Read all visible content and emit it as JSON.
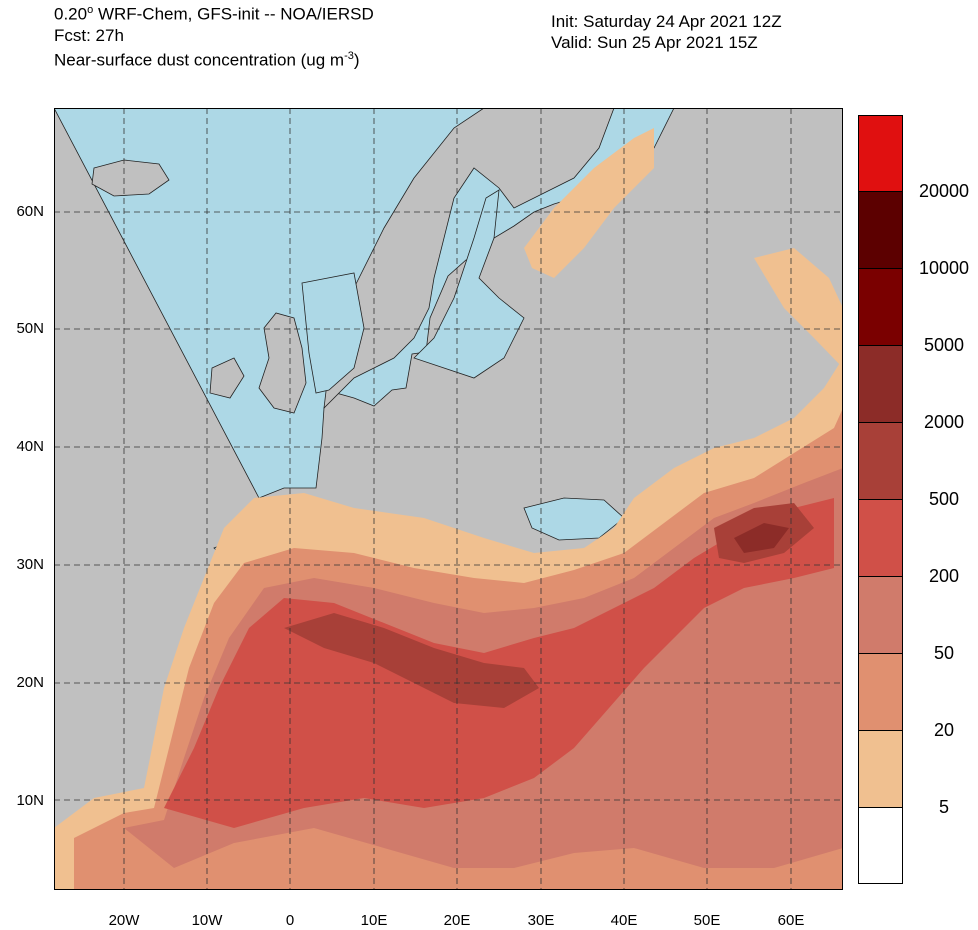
{
  "header": {
    "line1_prefix": "0.20",
    "line1_degree": "o",
    "line1_suffix": " WRF-Chem, GFS-init -- NOA/IERSD",
    "line2": "Fcst: 27h",
    "line3_prefix": "Near-surface dust concentration (ug m",
    "line3_exp": "-3",
    "line3_suffix": ")",
    "init": "Init: Saturday 24 Apr 2021  12Z",
    "valid": "Valid: Sun 25 Apr 2021  15Z"
  },
  "map": {
    "lon_labels": [
      "20W",
      "10W",
      "0",
      "10E",
      "20E",
      "30E",
      "40E",
      "50E",
      "60E"
    ],
    "lat_labels": [
      "60N",
      "50N",
      "40N",
      "30N",
      "20N",
      "10N"
    ],
    "gridlines": "dashed",
    "colors": {
      "ocean": "#add8e6",
      "land": "#c0c0c0",
      "borders": "#000000"
    }
  },
  "colorbar": {
    "levels": [
      "5",
      "20",
      "50",
      "200",
      "500",
      "2000",
      "5000",
      "10000",
      "20000"
    ],
    "colors": [
      "#ffffff",
      "#f0c090",
      "#e09070",
      "#d07b6b",
      "#d05048",
      "#a84038",
      "#8c2c28",
      "#7a0000",
      "#5c0000",
      "#e01010"
    ]
  }
}
